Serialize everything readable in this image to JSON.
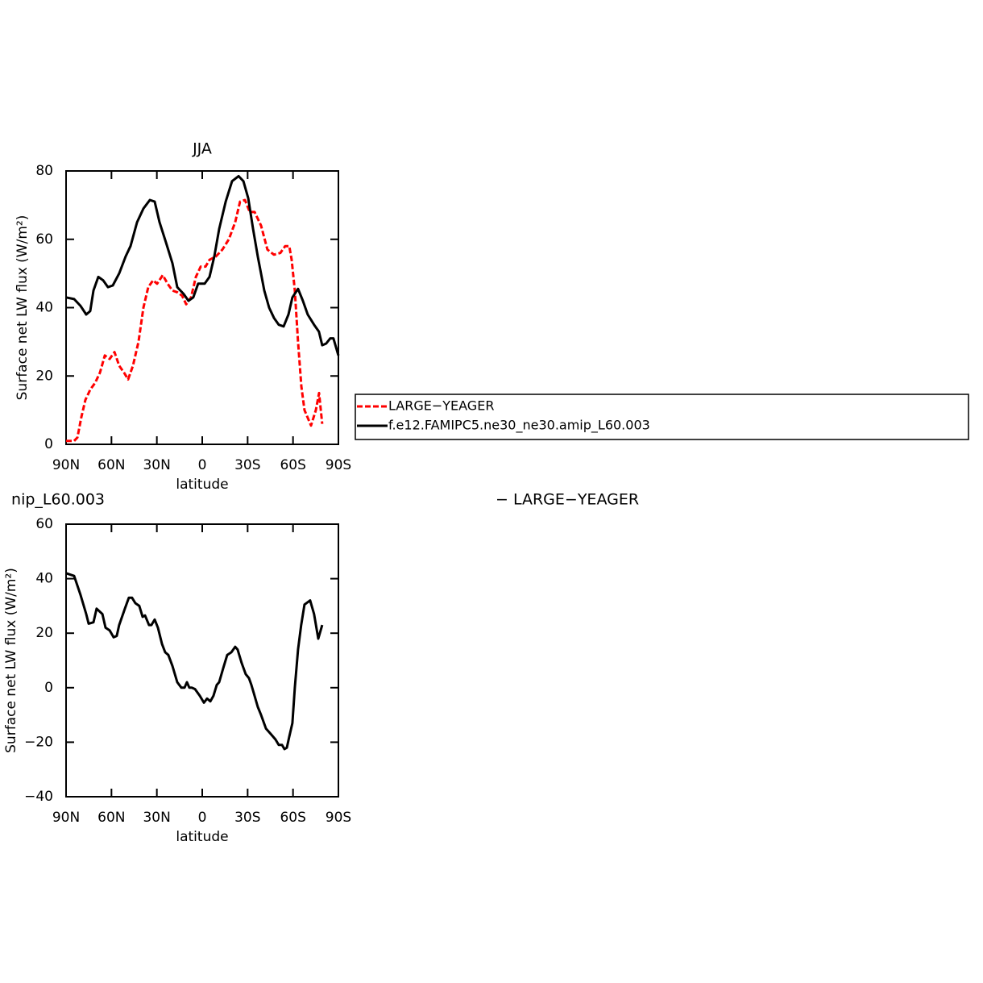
{
  "chart_data": [
    {
      "type": "line",
      "title": "JJA",
      "xlabel": "latitude",
      "ylabel": "Surface net LW flux (W/m²)",
      "xlim": [
        90,
        -90
      ],
      "xticks": [
        {
          "value": 90,
          "label": "90N"
        },
        {
          "value": 60,
          "label": "60N"
        },
        {
          "value": 30,
          "label": "30N"
        },
        0,
        {
          "value": -30,
          "label": "30S"
        },
        {
          "value": -60,
          "label": "60S"
        },
        {
          "value": -90,
          "label": "90S"
        }
      ],
      "ylim": [
        0,
        80
      ],
      "yticks": [
        0,
        20,
        40,
        60,
        80
      ],
      "legend": "right",
      "series": [
        {
          "name": "LARGE−YEAGER",
          "color": "#ff0000",
          "dash": "dashed",
          "x": [
            90,
            84.7,
            82.5,
            79.9,
            77.2,
            74.0,
            70.8,
            67.6,
            64.4,
            61.2,
            58.0,
            54.9,
            51.7,
            49.0,
            45.8,
            42.1,
            38.9,
            35.7,
            32.5,
            29.8,
            26.1,
            22.9,
            19.7,
            16.5,
            13.3,
            10.6,
            7.4,
            4.2,
            1.0,
            -2.2,
            -4.8,
            -9.1,
            -13.3,
            -17.6,
            -21.8,
            -25.0,
            -28.2,
            -31.4,
            -34.6,
            -38.9,
            -43.1,
            -47.4,
            -51.6,
            -54.8,
            -57.5,
            -59.1,
            -61.2,
            -63.3,
            -65.5,
            -67.6,
            -71.9,
            -75.1,
            -77.2,
            -79.3
          ],
          "values": [
            1,
            1,
            2,
            8,
            13,
            16,
            18,
            21,
            26,
            25,
            27,
            23,
            21,
            19,
            23,
            30,
            40,
            46,
            48,
            47,
            49.5,
            47,
            45,
            44.5,
            43.5,
            41,
            43,
            49,
            52,
            52,
            54,
            55,
            57,
            60,
            65,
            71,
            71.5,
            68,
            68,
            64,
            57,
            55.5,
            56,
            58,
            58,
            54,
            45,
            30,
            17,
            10,
            5.5,
            10,
            15,
            6
          ]
        },
        {
          "name": "f.e12.FAMIPC5.ne30_ne30.amip_L60.003",
          "color": "#000000",
          "dash": "solid",
          "x": [
            90,
            84.7,
            80.4,
            76.7,
            74.0,
            71.9,
            68.7,
            65.5,
            62.3,
            59.1,
            54.9,
            50.6,
            47.4,
            43.1,
            38.9,
            34.6,
            31.4,
            28.2,
            23.9,
            19.7,
            16.5,
            12.3,
            9.1,
            5.9,
            2.7,
            -1.6,
            -4.8,
            -8.0,
            -11.2,
            -15.5,
            -19.7,
            -24.0,
            -27.2,
            -30.4,
            -33.6,
            -36.7,
            -41.0,
            -44.2,
            -47.4,
            -50.6,
            -53.8,
            -57.0,
            -59.6,
            -63.3,
            -66.5,
            -69.7,
            -73.9,
            -77.1,
            -79.3,
            -81.9,
            -84.6,
            -86.7,
            -90
          ],
          "values": [
            43,
            42.5,
            40.5,
            38,
            39,
            45,
            49,
            48,
            46,
            46.5,
            50,
            55,
            58,
            65,
            69,
            71.5,
            71,
            65,
            59,
            53,
            46,
            44,
            42,
            43,
            47,
            47,
            49,
            55,
            63,
            71,
            77,
            78.5,
            77,
            72,
            63,
            55,
            45,
            40,
            37,
            35,
            34.5,
            38,
            43,
            45.5,
            42,
            38,
            35,
            33,
            29,
            29.5,
            31,
            31,
            26
          ]
        }
      ]
    },
    {
      "type": "line",
      "title_parts": [
        "nip_L60.003",
        "− LARGE−YEAGER"
      ],
      "xlabel": "latitude",
      "ylabel": "Surface net LW flux (W/m²)",
      "xlim": [
        90,
        -90
      ],
      "xticks": [
        {
          "value": 90,
          "label": "90N"
        },
        {
          "value": 60,
          "label": "60N"
        },
        {
          "value": 30,
          "label": "30N"
        },
        0,
        {
          "value": -30,
          "label": "30S"
        },
        {
          "value": -60,
          "label": "60S"
        },
        {
          "value": -90,
          "label": "90S"
        }
      ],
      "ylim": [
        -40,
        60
      ],
      "yticks": [
        {
          "value": -40,
          "label": "−40"
        },
        {
          "value": -20,
          "label": "−20"
        },
        0,
        20,
        40,
        60
      ],
      "series": [
        {
          "color": "#000000",
          "dash": "solid",
          "x": [
            90,
            84.7,
            80.4,
            76.7,
            75.1,
            71.9,
            69.8,
            66.0,
            63.9,
            61.2,
            58.6,
            56.5,
            54.9,
            51.1,
            48.5,
            46.4,
            44.2,
            41.6,
            39.4,
            37.8,
            35.2,
            33.6,
            31.4,
            29.3,
            26.6,
            24.5,
            22.4,
            19.7,
            16.5,
            13.8,
            11.7,
            10.1,
            8.5,
            6.9,
            4.8,
            1.6,
            -1.1,
            -3.2,
            -5.4,
            -7.4,
            -9.6,
            -11.2,
            -13.8,
            -16.5,
            -19.2,
            -21.8,
            -23.4,
            -26.1,
            -28.7,
            -30.9,
            -32.5,
            -34.1,
            -36.7,
            -38.9,
            -42.1,
            -45.3,
            -48.4,
            -50.6,
            -52.7,
            -54.3,
            -55.9,
            -57.5,
            -59.6,
            -61.2,
            -63.3,
            -65.4,
            -67.6,
            -71.3,
            -73.9,
            -76.7,
            -79.3
          ],
          "values": [
            42,
            41,
            34,
            27,
            23.5,
            24,
            29,
            27,
            22,
            21,
            18.5,
            19,
            23,
            29,
            33,
            33,
            31,
            30,
            26,
            26.5,
            23,
            23,
            25,
            22,
            16,
            13,
            12,
            8,
            2,
            0,
            0,
            2,
            0,
            0,
            -0.5,
            -3,
            -5.5,
            -4,
            -5,
            -3,
            1,
            2,
            7,
            12,
            13,
            15,
            14,
            9,
            5,
            3.5,
            1,
            -2,
            -7,
            -10,
            -15,
            -17,
            -19,
            -21,
            -21,
            -22.5,
            -22,
            -18,
            -13,
            0,
            14,
            23,
            30.5,
            32,
            27,
            18,
            23
          ]
        }
      ]
    }
  ]
}
